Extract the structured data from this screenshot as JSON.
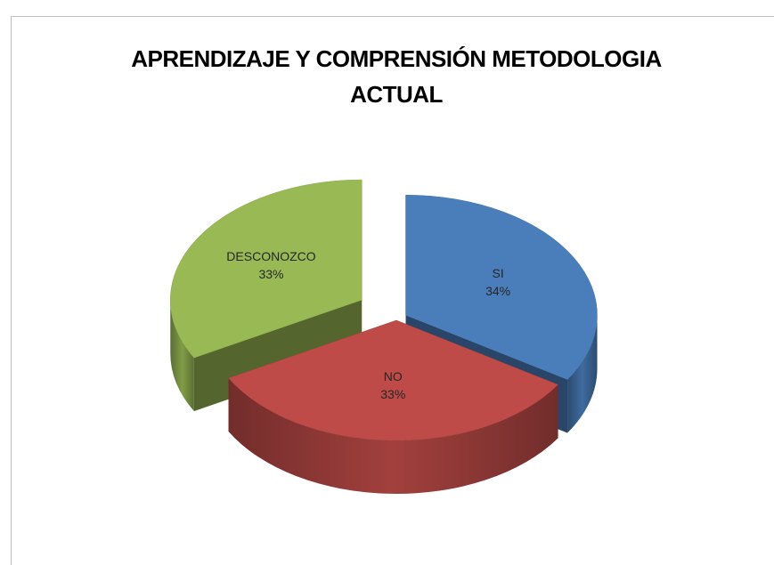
{
  "chart_data": {
    "type": "pie3d",
    "title": "APRENDIZAJE Y COMPRENSIÓN METODOLOGIA ACTUAL",
    "categories": [
      "SI",
      "NO",
      "DESCONOZCO"
    ],
    "values": [
      34,
      33,
      33
    ],
    "value_labels": [
      "34%",
      "33%",
      "33%"
    ],
    "colors": [
      "#4a7ebb",
      "#be4b48",
      "#98b954"
    ]
  }
}
